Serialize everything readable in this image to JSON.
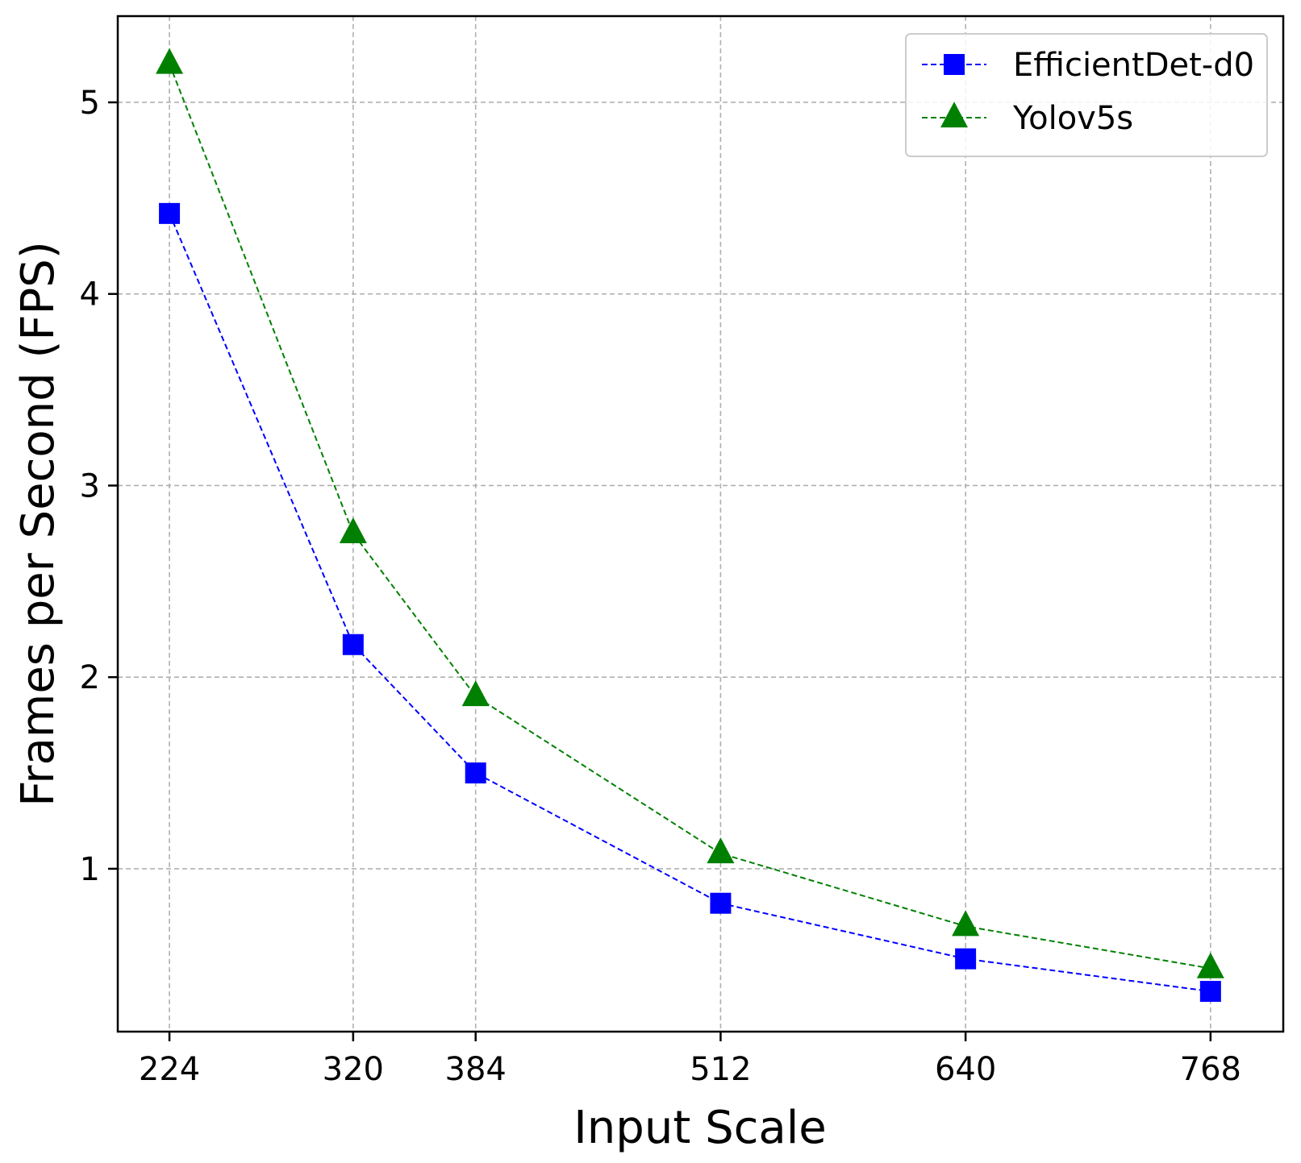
{
  "chart_data": {
    "type": "line",
    "title": "",
    "xlabel": "Input Scale",
    "ylabel": "Frames per Second (FPS)",
    "x": [
      224,
      320,
      384,
      512,
      640,
      768
    ],
    "x_tick_labels": [
      "224",
      "320",
      "384",
      "512",
      "640",
      "768"
    ],
    "xlim": [
      197,
      806
    ],
    "ylim": [
      0.15,
      5.45
    ],
    "y_ticks": [
      1,
      2,
      3,
      4,
      5
    ],
    "y_tick_labels": [
      "1",
      "2",
      "3",
      "4",
      "5"
    ],
    "grid": true,
    "legend_position": "top-right",
    "series": [
      {
        "name": "EfficientDet-d0",
        "marker": "square",
        "line_style": "dashed",
        "color": "#0000ff",
        "values": [
          4.42,
          2.17,
          1.5,
          0.82,
          0.53,
          0.36
        ]
      },
      {
        "name": "Yolov5s",
        "marker": "triangle",
        "line_style": "dashed",
        "color": "#008000",
        "values": [
          5.2,
          2.75,
          1.9,
          1.08,
          0.7,
          0.48
        ]
      }
    ]
  }
}
